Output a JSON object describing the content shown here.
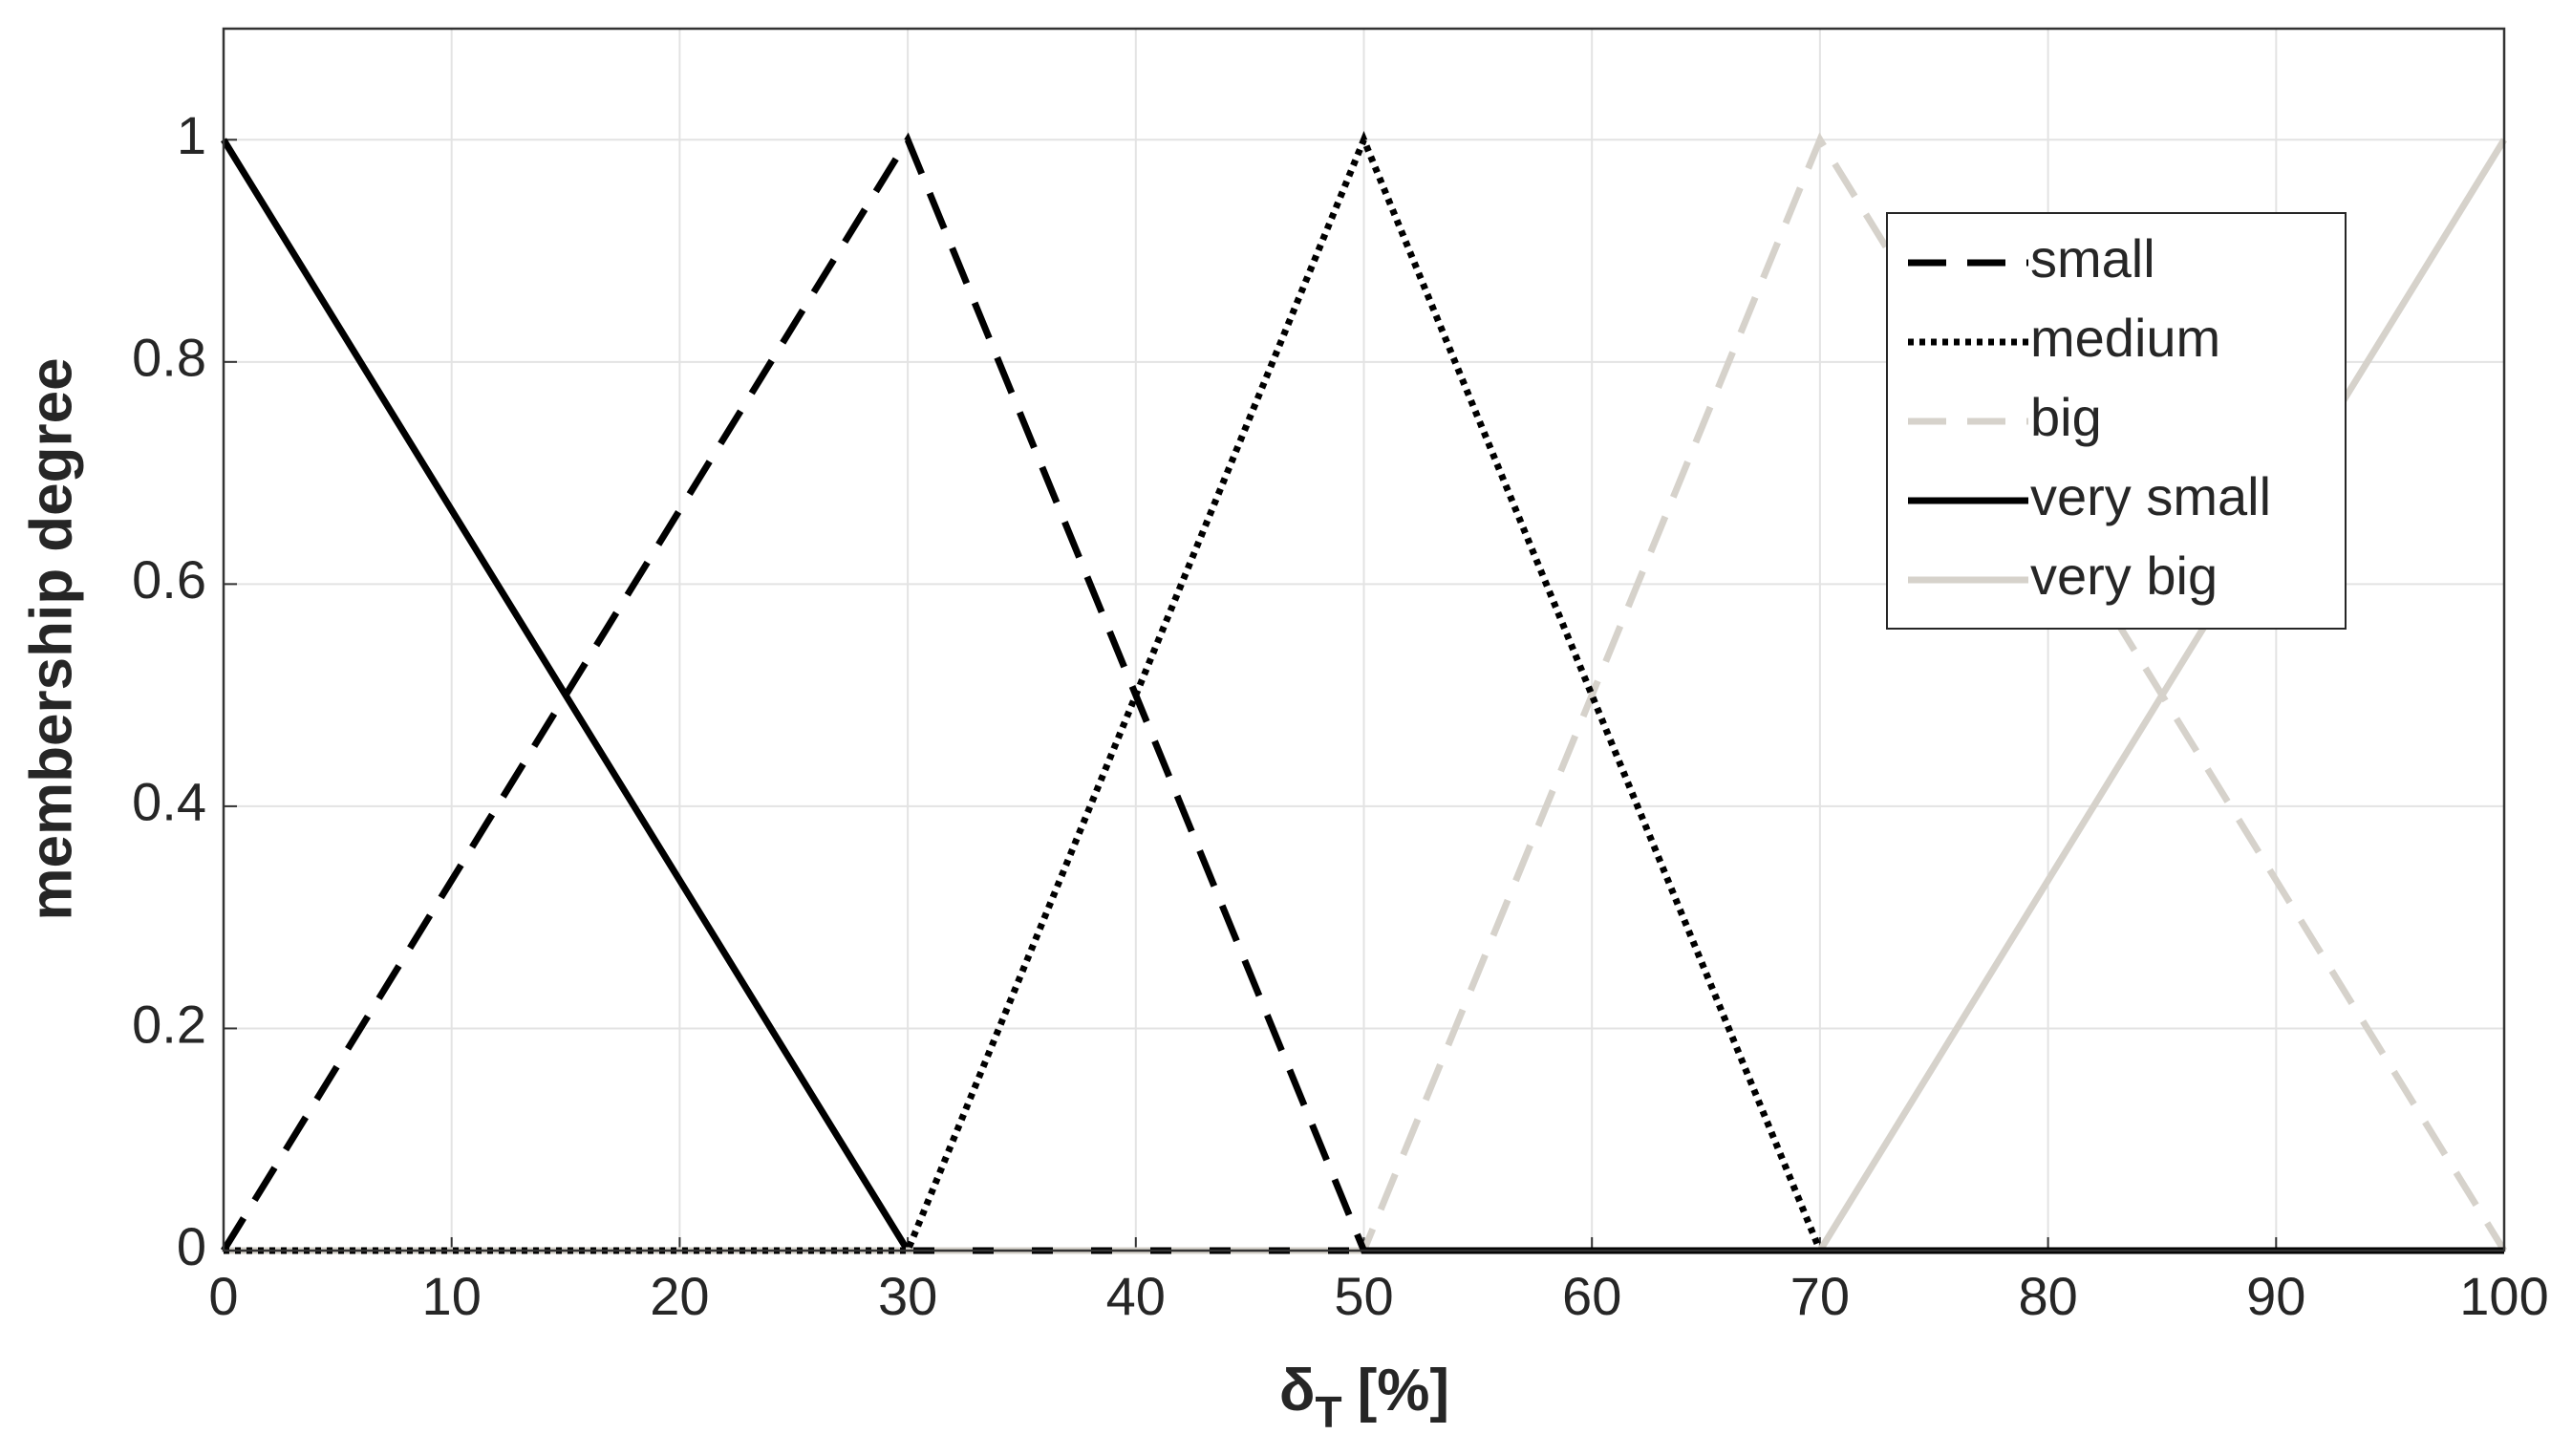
{
  "chart_data": {
    "type": "line",
    "xlabel": {
      "main": "δ",
      "sub": "T",
      "rest": "[%]"
    },
    "ylabel": "membership degree",
    "xlim": [
      0,
      100
    ],
    "xticks": [
      0,
      10,
      20,
      30,
      40,
      50,
      60,
      70,
      80,
      90,
      100
    ],
    "ylim": [
      0,
      1.1
    ],
    "yticks": [
      0,
      0.2,
      0.4,
      0.6,
      0.8,
      1
    ],
    "grid": true,
    "legend": "upper right",
    "series": [
      {
        "name": "small",
        "color": "#000000",
        "style": "dashed",
        "x": [
          0,
          30,
          50,
          100
        ],
        "values": [
          0,
          1,
          0,
          0
        ]
      },
      {
        "name": "medium",
        "color": "#000000",
        "style": "dotted",
        "x": [
          0,
          30,
          50,
          70,
          100
        ],
        "values": [
          0,
          0,
          1,
          0,
          0
        ]
      },
      {
        "name": "big",
        "color": "#d6d2cb",
        "style": "dashed",
        "x": [
          0,
          50,
          70,
          100
        ],
        "values": [
          0,
          0,
          1,
          0
        ]
      },
      {
        "name": "very small",
        "color": "#000000",
        "style": "solid",
        "x": [
          0,
          30,
          100
        ],
        "values": [
          1,
          0,
          0
        ]
      },
      {
        "name": "very big",
        "color": "#d6d2cb",
        "style": "solid",
        "x": [
          0,
          70,
          100
        ],
        "values": [
          0,
          0,
          1
        ]
      }
    ]
  }
}
